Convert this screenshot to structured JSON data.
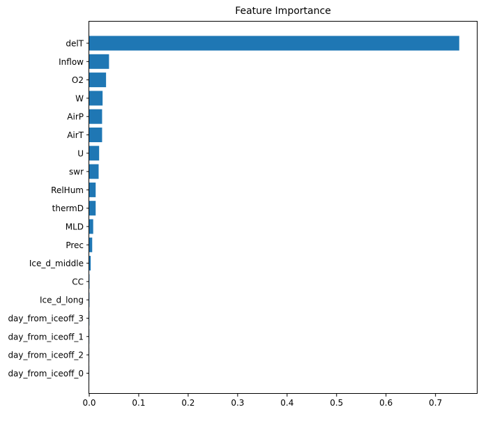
{
  "chart_data": {
    "type": "bar",
    "orientation": "horizontal",
    "title": "Feature Importance",
    "xlabel": "",
    "ylabel": "",
    "xlim": [
      0,
      0.785
    ],
    "xticks": [
      0.0,
      0.1,
      0.2,
      0.3,
      0.4,
      0.5,
      0.6,
      0.7
    ],
    "xtick_labels": [
      "0.0",
      "0.1",
      "0.2",
      "0.3",
      "0.4",
      "0.5",
      "0.6",
      "0.7"
    ],
    "grid": false,
    "bar_color": "#1f77b4",
    "categories": [
      "delT",
      "Inflow",
      "O2",
      "W",
      "AirP",
      "AirT",
      "U",
      "swr",
      "RelHum",
      "thermD",
      "MLD",
      "Prec",
      "Ice_d_middle",
      "CC",
      "Ice_d_long",
      "day_from_iceoff_3",
      "day_from_iceoff_1",
      "day_from_iceoff_2",
      "day_from_iceoff_0"
    ],
    "values": [
      0.748,
      0.04,
      0.034,
      0.027,
      0.026,
      0.026,
      0.02,
      0.019,
      0.013,
      0.013,
      0.008,
      0.006,
      0.003,
      0.0005,
      0.0004,
      0.0003,
      0.0002,
      0.0001,
      0.0001
    ]
  }
}
